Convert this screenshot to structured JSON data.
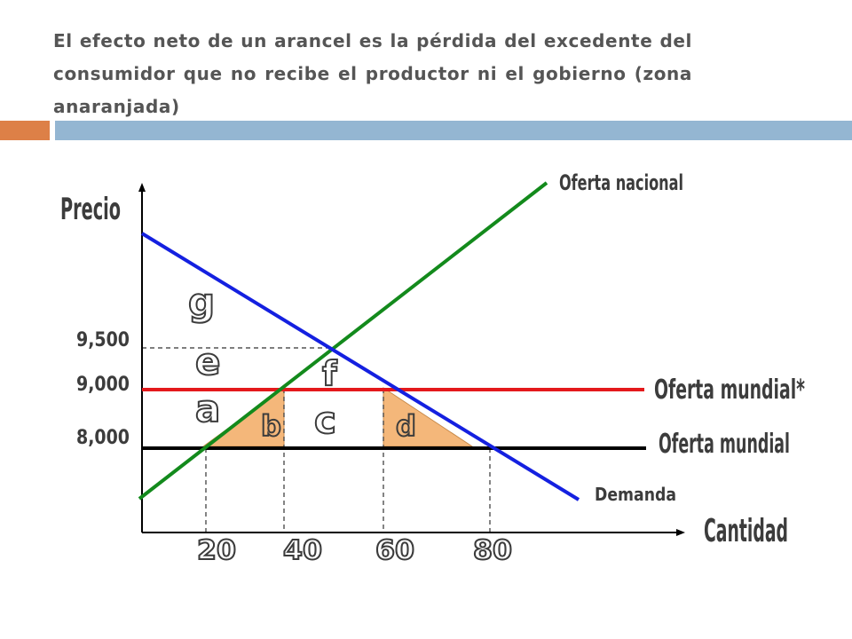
{
  "title": "El efecto neto de un arancel es la pérdida del excedente del consumidor que no recibe el productor ni el gobierno (zona anaranjada)",
  "diagram": {
    "y_axis_label": "Precio",
    "x_axis_label": "Cantidad",
    "y_ticks": [
      "9,500",
      "9,000",
      "8,000"
    ],
    "x_ticks": [
      "20",
      "40",
      "60",
      "80"
    ],
    "curves": {
      "domestic_supply": "Oferta nacional",
      "world_supply_tariff": "Oferta mundial*",
      "world_supply": "Oferta mundial",
      "demand": "Demanda"
    },
    "areas": [
      "g",
      "e",
      "a",
      "f",
      "b",
      "c",
      "d"
    ],
    "colors": {
      "domestic_supply": "#138a1c",
      "demand": "#1420e0",
      "world_supply_tariff": "#e4191c",
      "world_supply": "#000000",
      "deadweight_loss": "#f4b77a",
      "accent_orange": "#dd8047",
      "accent_blue": "#94b6d2"
    }
  }
}
